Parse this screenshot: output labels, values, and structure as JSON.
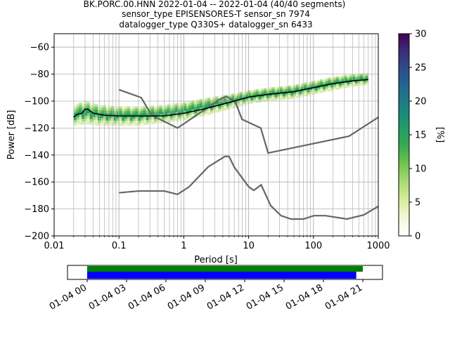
{
  "figure": {
    "title_lines": [
      "BK.PORC.00.HNN   2022-01-04 -- 2022-01-04  (40/40 segments)",
      "sensor_type EPISENSORES-T sensor_sn 7974",
      "datalogger_type Q330S+ datalogger_sn 6433"
    ]
  },
  "chart_data": [
    {
      "type": "heatmap",
      "xlabel": "Period [s]",
      "ylabel": "Power [dB]",
      "xscale": "log",
      "xlim": [
        0.01,
        1000
      ],
      "ylim": [
        -200,
        -50
      ],
      "x_tick_labels": [
        "0.01",
        "0.1",
        "1",
        "10",
        "100",
        "1000"
      ],
      "y_ticks": [
        -200,
        -180,
        -160,
        -140,
        -120,
        -100,
        -80,
        -60
      ],
      "grid": true,
      "colorbar": {
        "label": "[%]",
        "range": [
          0,
          30
        ],
        "ticks": [
          0,
          5,
          10,
          15,
          20,
          25,
          30
        ],
        "colors": [
          "#ffffff",
          "#f2f7d9",
          "#d6ec9a",
          "#a8d971",
          "#6cc24a",
          "#34a853",
          "#1f9a6b",
          "#1b8381",
          "#226a8f",
          "#2e4e8c",
          "#3b2f7c",
          "#440154"
        ]
      },
      "density_period_range": [
        0.02,
        700
      ],
      "density_color": "#6cc24a",
      "density_band": [
        {
          "x": 0.02,
          "upper": -103,
          "lower": -118
        },
        {
          "x": 0.03,
          "upper": -100,
          "lower": -117
        },
        {
          "x": 0.05,
          "upper": -103,
          "lower": -118
        },
        {
          "x": 0.1,
          "upper": -104,
          "lower": -118
        },
        {
          "x": 0.2,
          "upper": -104,
          "lower": -118
        },
        {
          "x": 0.5,
          "upper": -103,
          "lower": -116
        },
        {
          "x": 1,
          "upper": -101,
          "lower": -114
        },
        {
          "x": 2,
          "upper": -98,
          "lower": -111
        },
        {
          "x": 5,
          "upper": -95,
          "lower": -106
        },
        {
          "x": 10,
          "upper": -92,
          "lower": -102
        },
        {
          "x": 20,
          "upper": -90,
          "lower": -100
        },
        {
          "x": 50,
          "upper": -88,
          "lower": -98
        },
        {
          "x": 100,
          "upper": -85,
          "lower": -95
        },
        {
          "x": 200,
          "upper": -82,
          "lower": -92
        },
        {
          "x": 400,
          "upper": -80,
          "lower": -89
        },
        {
          "x": 700,
          "upper": -79,
          "lower": -88
        }
      ],
      "mean_line": {
        "color": "#000000",
        "points": [
          {
            "x": 0.02,
            "y": -112
          },
          {
            "x": 0.022,
            "y": -110
          },
          {
            "x": 0.027,
            "y": -109
          },
          {
            "x": 0.03,
            "y": -106
          },
          {
            "x": 0.033,
            "y": -106
          },
          {
            "x": 0.04,
            "y": -109
          },
          {
            "x": 0.06,
            "y": -110.5
          },
          {
            "x": 0.1,
            "y": -111
          },
          {
            "x": 0.2,
            "y": -111
          },
          {
            "x": 0.5,
            "y": -111
          },
          {
            "x": 1,
            "y": -109
          },
          {
            "x": 2,
            "y": -106
          },
          {
            "x": 5,
            "y": -101
          },
          {
            "x": 10,
            "y": -97
          },
          {
            "x": 20,
            "y": -95
          },
          {
            "x": 50,
            "y": -93
          },
          {
            "x": 100,
            "y": -90
          },
          {
            "x": 200,
            "y": -87
          },
          {
            "x": 400,
            "y": -85
          },
          {
            "x": 700,
            "y": -84
          }
        ]
      },
      "noise_models": {
        "color": "#666666",
        "nhnm": [
          {
            "x": 0.1,
            "y": -91.5
          },
          {
            "x": 0.22,
            "y": -97.4
          },
          {
            "x": 0.32,
            "y": -110.5
          },
          {
            "x": 0.8,
            "y": -120
          },
          {
            "x": 3.8,
            "y": -98
          },
          {
            "x": 4.6,
            "y": -96.5
          },
          {
            "x": 6.3,
            "y": -101
          },
          {
            "x": 7.9,
            "y": -113.5
          },
          {
            "x": 15.4,
            "y": -120
          },
          {
            "x": 20,
            "y": -138.5
          },
          {
            "x": 354.8,
            "y": -126
          },
          {
            "x": 1000,
            "y": -112
          }
        ],
        "nlnm": [
          {
            "x": 0.1,
            "y": -168
          },
          {
            "x": 0.2,
            "y": -166.7
          },
          {
            "x": 0.5,
            "y": -166.7
          },
          {
            "x": 0.8,
            "y": -169.2
          },
          {
            "x": 1.2,
            "y": -163.7
          },
          {
            "x": 2.4,
            "y": -148.6
          },
          {
            "x": 4.3,
            "y": -141.1
          },
          {
            "x": 5,
            "y": -141.1
          },
          {
            "x": 6,
            "y": -149
          },
          {
            "x": 10,
            "y": -163.5
          },
          {
            "x": 12,
            "y": -166.2
          },
          {
            "x": 15.6,
            "y": -162.1
          },
          {
            "x": 21.9,
            "y": -177.5
          },
          {
            "x": 31.6,
            "y": -185
          },
          {
            "x": 45,
            "y": -187.5
          },
          {
            "x": 70,
            "y": -187.5
          },
          {
            "x": 101,
            "y": -185
          },
          {
            "x": 154,
            "y": -185
          },
          {
            "x": 328,
            "y": -187.5
          },
          {
            "x": 600,
            "y": -184.4
          },
          {
            "x": 1000,
            "y": -178
          }
        ]
      }
    },
    {
      "type": "timeline",
      "tick_labels": [
        "01-04 00",
        "01-04 03",
        "01-04 06",
        "01-04 09",
        "01-04 12",
        "01-04 15",
        "01-04 18",
        "01-04 21"
      ],
      "tick_hours": [
        0,
        3,
        6,
        9,
        12,
        15,
        18,
        21
      ],
      "xlim_hours": [
        -1.5,
        22.5
      ],
      "bars": [
        {
          "color": "#008000",
          "start_hour": 0,
          "end_hour": 21.0
        },
        {
          "color": "#0000ff",
          "start_hour": 0,
          "end_hour": 20.5
        }
      ]
    }
  ]
}
